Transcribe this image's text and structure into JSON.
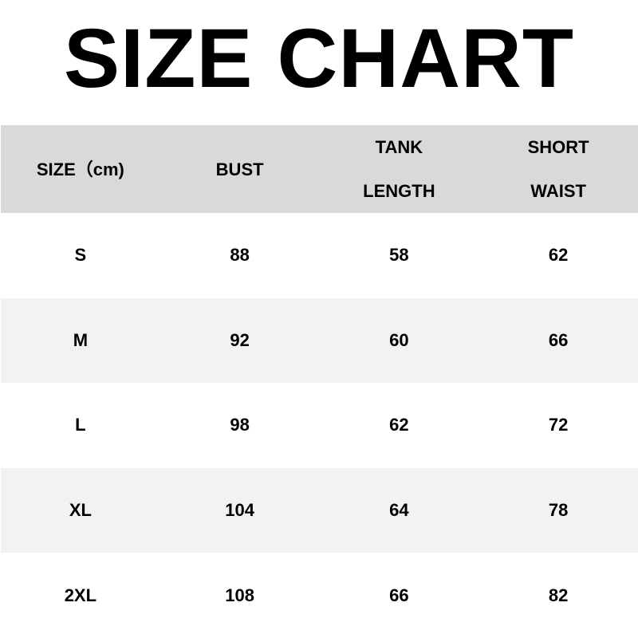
{
  "title": "SIZE CHART",
  "chart_data": {
    "type": "table",
    "columns": [
      [
        "SIZE（cm)"
      ],
      [
        "BUST"
      ],
      [
        "TANK",
        "LENGTH"
      ],
      [
        "SHORT",
        "WAIST"
      ]
    ],
    "rows": [
      [
        "S",
        "88",
        "58",
        "62"
      ],
      [
        "M",
        "92",
        "60",
        "66"
      ],
      [
        "L",
        "98",
        "62",
        "72"
      ],
      [
        "XL",
        "104",
        "64",
        "78"
      ],
      [
        "2XL",
        "108",
        "66",
        "82"
      ]
    ],
    "colors": {
      "header_bg": "#d9d9d9",
      "alt_row_bg": "#f2f2f2"
    }
  }
}
